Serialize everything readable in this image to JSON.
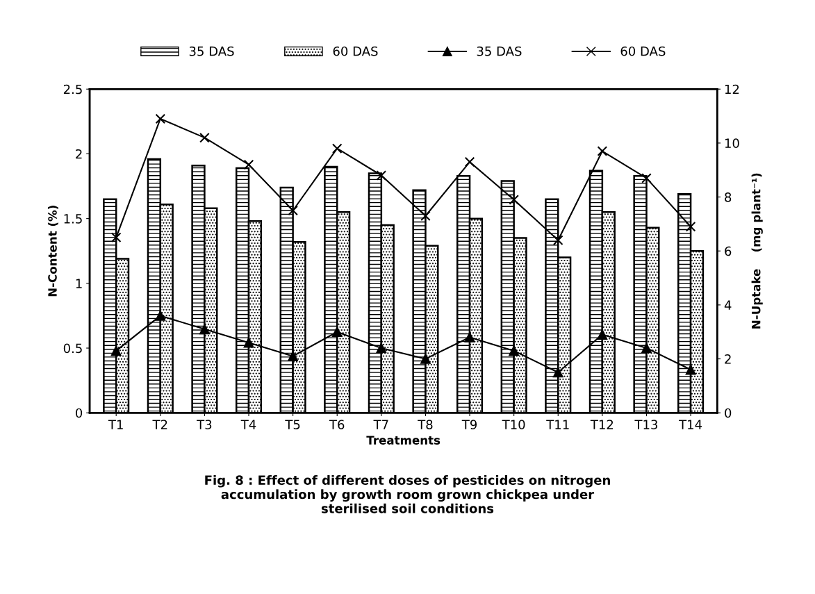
{
  "chart_data": {
    "type": "bar",
    "xlabel": "Treatments",
    "ylabel": "N-Content (%)",
    "y2label": "N-Uptake    (mg plant⁻¹)",
    "categories": [
      "T1",
      "T2",
      "T3",
      "T4",
      "T5",
      "T6",
      "T7",
      "T8",
      "T9",
      "T10",
      "T11",
      "T12",
      "T13",
      "T14"
    ],
    "series": [
      {
        "name": "35 DAS",
        "color": "#000000",
        "values": [
          1.65,
          1.96,
          1.91,
          1.89,
          1.74,
          1.9,
          1.85,
          1.72,
          1.83,
          1.79,
          1.65,
          1.87,
          1.83,
          1.69
        ]
      },
      {
        "name": "60 DAS",
        "color": "#000000",
        "values": [
          1.19,
          1.61,
          1.58,
          1.48,
          1.32,
          1.55,
          1.45,
          1.29,
          1.5,
          1.35,
          1.2,
          1.55,
          1.43,
          1.25
        ]
      },
      {
        "name": "35 DAS",
        "type": "line",
        "axis": "y2",
        "color": "#000000",
        "marker": "triangle",
        "values": [
          2.3,
          3.6,
          3.1,
          2.6,
          2.1,
          3.0,
          2.4,
          2.0,
          2.8,
          2.3,
          1.5,
          2.9,
          2.4,
          1.6
        ]
      },
      {
        "name": "60 DAS",
        "type": "line",
        "axis": "y2",
        "color": "#000000",
        "marker": "cross",
        "values": [
          6.5,
          10.9,
          10.2,
          9.2,
          7.5,
          9.8,
          8.8,
          7.3,
          9.3,
          7.9,
          6.4,
          9.7,
          8.7,
          6.9
        ]
      }
    ],
    "ylim": [
      0,
      2.5
    ],
    "yticks": [
      0,
      0.5,
      1,
      1.5,
      2,
      2.5
    ],
    "y2lim": [
      0,
      12
    ],
    "y2ticks": [
      0,
      2,
      4,
      6,
      8,
      10,
      12
    ],
    "grid": false,
    "legend": "top",
    "annotations": [
      "Fig. 8 : Effect of different doses of pesticides on nitrogen\naccumulation by growth room grown chickpea under\nsterilised soil conditions"
    ]
  }
}
